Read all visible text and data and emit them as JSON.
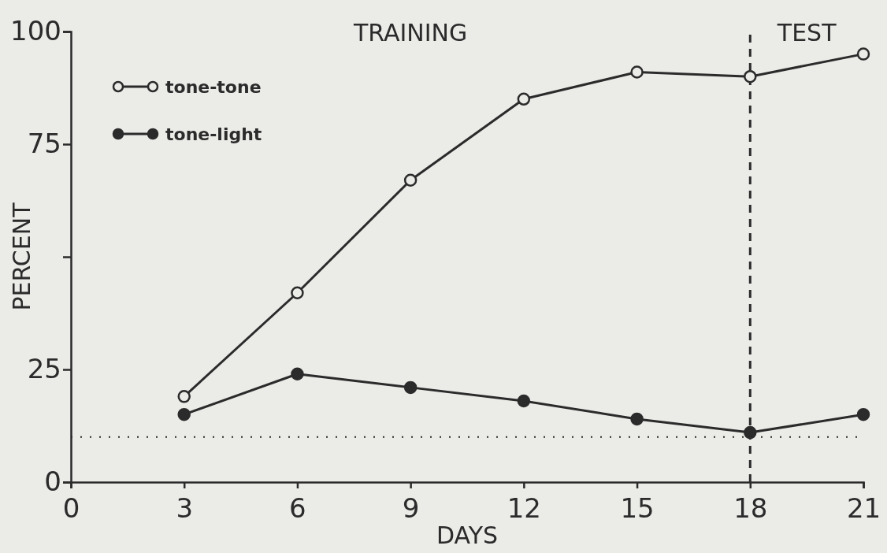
{
  "chart_data": {
    "type": "line",
    "xlabel": "DAYS",
    "ylabel": "PERCENT",
    "x": [
      3,
      6,
      9,
      12,
      15,
      18,
      21
    ],
    "series": [
      {
        "name": "tone-tone",
        "color": "#2b2b2b",
        "values": [
          19,
          42,
          67,
          85,
          91,
          90,
          95
        ]
      },
      {
        "name": "tone-light",
        "color": "#2b2b2b",
        "values": [
          15,
          24,
          21,
          18,
          14,
          11,
          15
        ]
      }
    ],
    "xlim": [
      0,
      21
    ],
    "xticks": [
      0,
      3,
      6,
      9,
      12,
      15,
      18,
      21
    ],
    "ylim": [
      0,
      100
    ],
    "yticks": [
      0,
      25,
      {
        "value": 50,
        "label": null
      },
      75,
      100
    ],
    "ref_lines": [
      {
        "axis": "x",
        "value": 18,
        "line_style": "dashed"
      },
      {
        "axis": "y",
        "value": 10,
        "line_style": "dotted"
      }
    ],
    "annotations": [
      "TRAINING",
      "TEST"
    ],
    "legend": "top left",
    "marker": "circle",
    "line_style": "solid",
    "grid": false
  }
}
